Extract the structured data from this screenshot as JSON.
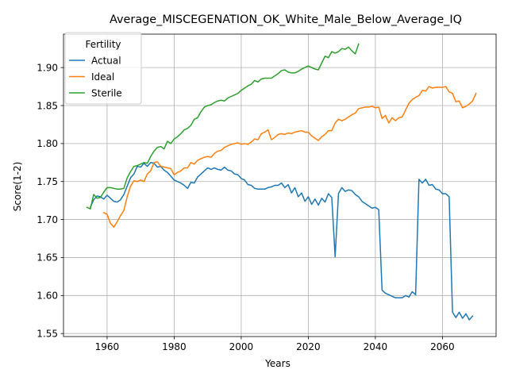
{
  "chart_data": {
    "type": "line",
    "title": "Average_MISCEGENATION_OK_White_Male_Below_Average_IQ",
    "xlabel": "Years",
    "ylabel": "Score(1-2)",
    "xlim": [
      1947,
      2076
    ],
    "ylim": [
      1.546,
      1.944
    ],
    "xticks": [
      1960,
      1980,
      2000,
      2020,
      2040,
      2060
    ],
    "yticks": [
      1.55,
      1.6,
      1.65,
      1.7,
      1.75,
      1.8,
      1.85,
      1.9
    ],
    "xtick_labels": [
      "1960",
      "1980",
      "2000",
      "2020",
      "2040",
      "2060"
    ],
    "ytick_labels": [
      "1.55",
      "1.60",
      "1.65",
      "1.70",
      "1.75",
      "1.80",
      "1.85",
      "1.90"
    ],
    "grid": true,
    "legend": {
      "title": "Fertility",
      "placement": "top-left"
    },
    "series": [
      {
        "name": "Actual",
        "color": "#1f77b4",
        "points": [
          [
            1955,
            1.716
          ],
          [
            1956,
            1.726
          ],
          [
            1957,
            1.731
          ],
          [
            1958,
            1.73
          ],
          [
            1959,
            1.727
          ],
          [
            1960,
            1.732
          ],
          [
            1961,
            1.728
          ],
          [
            1962,
            1.724
          ],
          [
            1963,
            1.723
          ],
          [
            1964,
            1.726
          ],
          [
            1965,
            1.733
          ],
          [
            1966,
            1.744
          ],
          [
            1967,
            1.755
          ],
          [
            1968,
            1.76
          ],
          [
            1969,
            1.77
          ],
          [
            1970,
            1.769
          ],
          [
            1971,
            1.774
          ],
          [
            1972,
            1.77
          ],
          [
            1973,
            1.775
          ],
          [
            1974,
            1.774
          ],
          [
            1975,
            1.769
          ],
          [
            1976,
            1.77
          ],
          [
            1977,
            1.765
          ],
          [
            1978,
            1.762
          ],
          [
            1979,
            1.757
          ],
          [
            1980,
            1.752
          ],
          [
            1981,
            1.75
          ],
          [
            1982,
            1.748
          ],
          [
            1983,
            1.745
          ],
          [
            1984,
            1.741
          ],
          [
            1985,
            1.749
          ],
          [
            1986,
            1.748
          ],
          [
            1987,
            1.756
          ],
          [
            1988,
            1.76
          ],
          [
            1989,
            1.764
          ],
          [
            1990,
            1.768
          ],
          [
            1991,
            1.766
          ],
          [
            1992,
            1.768
          ],
          [
            1993,
            1.766
          ],
          [
            1994,
            1.765
          ],
          [
            1995,
            1.769
          ],
          [
            1996,
            1.765
          ],
          [
            1997,
            1.764
          ],
          [
            1998,
            1.76
          ],
          [
            1999,
            1.759
          ],
          [
            2000,
            1.754
          ],
          [
            2001,
            1.752
          ],
          [
            2002,
            1.746
          ],
          [
            2003,
            1.745
          ],
          [
            2004,
            1.741
          ],
          [
            2005,
            1.74
          ],
          [
            2006,
            1.74
          ],
          [
            2007,
            1.74
          ],
          [
            2008,
            1.742
          ],
          [
            2009,
            1.743
          ],
          [
            2010,
            1.745
          ],
          [
            2011,
            1.745
          ],
          [
            2012,
            1.748
          ],
          [
            2013,
            1.742
          ],
          [
            2014,
            1.746
          ],
          [
            2015,
            1.735
          ],
          [
            2016,
            1.742
          ],
          [
            2017,
            1.73
          ],
          [
            2018,
            1.735
          ],
          [
            2019,
            1.724
          ],
          [
            2020,
            1.73
          ],
          [
            2021,
            1.72
          ],
          [
            2022,
            1.727
          ],
          [
            2023,
            1.719
          ],
          [
            2024,
            1.728
          ],
          [
            2025,
            1.723
          ],
          [
            2026,
            1.734
          ],
          [
            2027,
            1.729
          ],
          [
            2028,
            1.651
          ],
          [
            2029,
            1.734
          ],
          [
            2030,
            1.742
          ],
          [
            2031,
            1.737
          ],
          [
            2032,
            1.739
          ],
          [
            2033,
            1.738
          ],
          [
            2034,
            1.733
          ],
          [
            2035,
            1.73
          ],
          [
            2036,
            1.724
          ],
          [
            2037,
            1.721
          ],
          [
            2038,
            1.718
          ],
          [
            2039,
            1.715
          ],
          [
            2040,
            1.716
          ],
          [
            2041,
            1.713
          ],
          [
            2042,
            1.607
          ],
          [
            2043,
            1.603
          ],
          [
            2044,
            1.601
          ],
          [
            2045,
            1.599
          ],
          [
            2046,
            1.597
          ],
          [
            2047,
            1.597
          ],
          [
            2048,
            1.597
          ],
          [
            2049,
            1.6
          ],
          [
            2050,
            1.598
          ],
          [
            2051,
            1.605
          ],
          [
            2052,
            1.601
          ],
          [
            2053,
            1.753
          ],
          [
            2054,
            1.748
          ],
          [
            2055,
            1.753
          ],
          [
            2056,
            1.745
          ],
          [
            2057,
            1.746
          ],
          [
            2058,
            1.74
          ],
          [
            2059,
            1.739
          ],
          [
            2060,
            1.734
          ],
          [
            2061,
            1.734
          ],
          [
            2062,
            1.73
          ],
          [
            2063,
            1.578
          ],
          [
            2064,
            1.571
          ],
          [
            2065,
            1.578
          ],
          [
            2066,
            1.57
          ],
          [
            2067,
            1.576
          ],
          [
            2068,
            1.568
          ],
          [
            2069,
            1.573
          ]
        ]
      },
      {
        "name": "Ideal",
        "color": "#ff7f0e",
        "points": [
          [
            1959,
            1.709
          ],
          [
            1960,
            1.707
          ],
          [
            1961,
            1.695
          ],
          [
            1962,
            1.69
          ],
          [
            1963,
            1.697
          ],
          [
            1964,
            1.705
          ],
          [
            1965,
            1.712
          ],
          [
            1966,
            1.73
          ],
          [
            1967,
            1.744
          ],
          [
            1968,
            1.751
          ],
          [
            1969,
            1.75
          ],
          [
            1970,
            1.752
          ],
          [
            1971,
            1.75
          ],
          [
            1972,
            1.76
          ],
          [
            1973,
            1.764
          ],
          [
            1974,
            1.775
          ],
          [
            1975,
            1.776
          ],
          [
            1976,
            1.77
          ],
          [
            1977,
            1.769
          ],
          [
            1978,
            1.768
          ],
          [
            1979,
            1.767
          ],
          [
            1980,
            1.759
          ],
          [
            1981,
            1.762
          ],
          [
            1982,
            1.764
          ],
          [
            1983,
            1.768
          ],
          [
            1984,
            1.768
          ],
          [
            1985,
            1.775
          ],
          [
            1986,
            1.773
          ],
          [
            1987,
            1.778
          ],
          [
            1988,
            1.78
          ],
          [
            1989,
            1.782
          ],
          [
            1990,
            1.783
          ],
          [
            1991,
            1.782
          ],
          [
            1992,
            1.787
          ],
          [
            1993,
            1.79
          ],
          [
            1994,
            1.791
          ],
          [
            1995,
            1.795
          ],
          [
            1996,
            1.797
          ],
          [
            1997,
            1.799
          ],
          [
            1998,
            1.8
          ],
          [
            1999,
            1.801
          ],
          [
            2000,
            1.799
          ],
          [
            2001,
            1.8
          ],
          [
            2002,
            1.799
          ],
          [
            2003,
            1.802
          ],
          [
            2004,
            1.806
          ],
          [
            2005,
            1.805
          ],
          [
            2006,
            1.813
          ],
          [
            2007,
            1.815
          ],
          [
            2008,
            1.818
          ],
          [
            2009,
            1.805
          ],
          [
            2010,
            1.808
          ],
          [
            2011,
            1.812
          ],
          [
            2012,
            1.813
          ],
          [
            2013,
            1.812
          ],
          [
            2014,
            1.814
          ],
          [
            2015,
            1.813
          ],
          [
            2016,
            1.815
          ],
          [
            2017,
            1.816
          ],
          [
            2018,
            1.817
          ],
          [
            2019,
            1.815
          ],
          [
            2020,
            1.815
          ],
          [
            2021,
            1.81
          ],
          [
            2022,
            1.807
          ],
          [
            2023,
            1.804
          ],
          [
            2024,
            1.809
          ],
          [
            2025,
            1.812
          ],
          [
            2026,
            1.817
          ],
          [
            2027,
            1.817
          ],
          [
            2028,
            1.827
          ],
          [
            2029,
            1.832
          ],
          [
            2030,
            1.83
          ],
          [
            2031,
            1.832
          ],
          [
            2032,
            1.835
          ],
          [
            2033,
            1.838
          ],
          [
            2034,
            1.84
          ],
          [
            2035,
            1.846
          ],
          [
            2036,
            1.847
          ],
          [
            2037,
            1.848
          ],
          [
            2038,
            1.848
          ],
          [
            2039,
            1.849
          ],
          [
            2040,
            1.847
          ],
          [
            2041,
            1.848
          ],
          [
            2042,
            1.833
          ],
          [
            2043,
            1.837
          ],
          [
            2044,
            1.827
          ],
          [
            2045,
            1.834
          ],
          [
            2046,
            1.83
          ],
          [
            2047,
            1.834
          ],
          [
            2048,
            1.835
          ],
          [
            2049,
            1.844
          ],
          [
            2050,
            1.853
          ],
          [
            2051,
            1.858
          ],
          [
            2052,
            1.861
          ],
          [
            2053,
            1.863
          ],
          [
            2054,
            1.87
          ],
          [
            2055,
            1.869
          ],
          [
            2056,
            1.875
          ],
          [
            2057,
            1.873
          ],
          [
            2058,
            1.874
          ],
          [
            2059,
            1.874
          ],
          [
            2060,
            1.874
          ],
          [
            2061,
            1.875
          ],
          [
            2062,
            1.868
          ],
          [
            2063,
            1.866
          ],
          [
            2064,
            1.855
          ],
          [
            2065,
            1.856
          ],
          [
            2066,
            1.847
          ],
          [
            2067,
            1.849
          ],
          [
            2068,
            1.852
          ],
          [
            2069,
            1.856
          ],
          [
            2070,
            1.866
          ]
        ]
      },
      {
        "name": "Sterile",
        "color": "#2ca02c",
        "points": [
          [
            1954,
            1.716
          ],
          [
            1955,
            1.714
          ],
          [
            1956,
            1.733
          ],
          [
            1957,
            1.728
          ],
          [
            1958,
            1.729
          ],
          [
            1959,
            1.736
          ],
          [
            1960,
            1.742
          ],
          [
            1961,
            1.742
          ],
          [
            1962,
            1.741
          ],
          [
            1963,
            1.74
          ],
          [
            1964,
            1.74
          ],
          [
            1965,
            1.741
          ],
          [
            1966,
            1.755
          ],
          [
            1967,
            1.763
          ],
          [
            1968,
            1.77
          ],
          [
            1969,
            1.771
          ],
          [
            1970,
            1.773
          ],
          [
            1971,
            1.775
          ],
          [
            1972,
            1.774
          ],
          [
            1973,
            1.783
          ],
          [
            1974,
            1.79
          ],
          [
            1975,
            1.795
          ],
          [
            1976,
            1.796
          ],
          [
            1977,
            1.793
          ],
          [
            1978,
            1.803
          ],
          [
            1979,
            1.8
          ],
          [
            1980,
            1.806
          ],
          [
            1981,
            1.809
          ],
          [
            1982,
            1.813
          ],
          [
            1983,
            1.818
          ],
          [
            1984,
            1.82
          ],
          [
            1985,
            1.824
          ],
          [
            1986,
            1.832
          ],
          [
            1987,
            1.834
          ],
          [
            1988,
            1.842
          ],
          [
            1989,
            1.848
          ],
          [
            1990,
            1.85
          ],
          [
            1991,
            1.851
          ],
          [
            1992,
            1.854
          ],
          [
            1993,
            1.856
          ],
          [
            1994,
            1.857
          ],
          [
            1995,
            1.856
          ],
          [
            1996,
            1.86
          ],
          [
            1997,
            1.862
          ],
          [
            1998,
            1.864
          ],
          [
            1999,
            1.866
          ],
          [
            2000,
            1.87
          ],
          [
            2001,
            1.873
          ],
          [
            2002,
            1.876
          ],
          [
            2003,
            1.878
          ],
          [
            2004,
            1.883
          ],
          [
            2005,
            1.881
          ],
          [
            2006,
            1.885
          ],
          [
            2007,
            1.886
          ],
          [
            2008,
            1.886
          ],
          [
            2009,
            1.886
          ],
          [
            2010,
            1.889
          ],
          [
            2011,
            1.892
          ],
          [
            2012,
            1.896
          ],
          [
            2013,
            1.897
          ],
          [
            2014,
            1.894
          ],
          [
            2015,
            1.893
          ],
          [
            2016,
            1.893
          ],
          [
            2017,
            1.895
          ],
          [
            2018,
            1.898
          ],
          [
            2019,
            1.9
          ],
          [
            2020,
            1.902
          ],
          [
            2021,
            1.9
          ],
          [
            2022,
            1.898
          ],
          [
            2023,
            1.897
          ],
          [
            2024,
            1.906
          ],
          [
            2025,
            1.915
          ],
          [
            2026,
            1.913
          ],
          [
            2027,
            1.921
          ],
          [
            2028,
            1.919
          ],
          [
            2029,
            1.921
          ],
          [
            2030,
            1.925
          ],
          [
            2031,
            1.924
          ],
          [
            2032,
            1.927
          ],
          [
            2033,
            1.922
          ],
          [
            2034,
            1.918
          ],
          [
            2035,
            1.931
          ]
        ]
      }
    ]
  }
}
